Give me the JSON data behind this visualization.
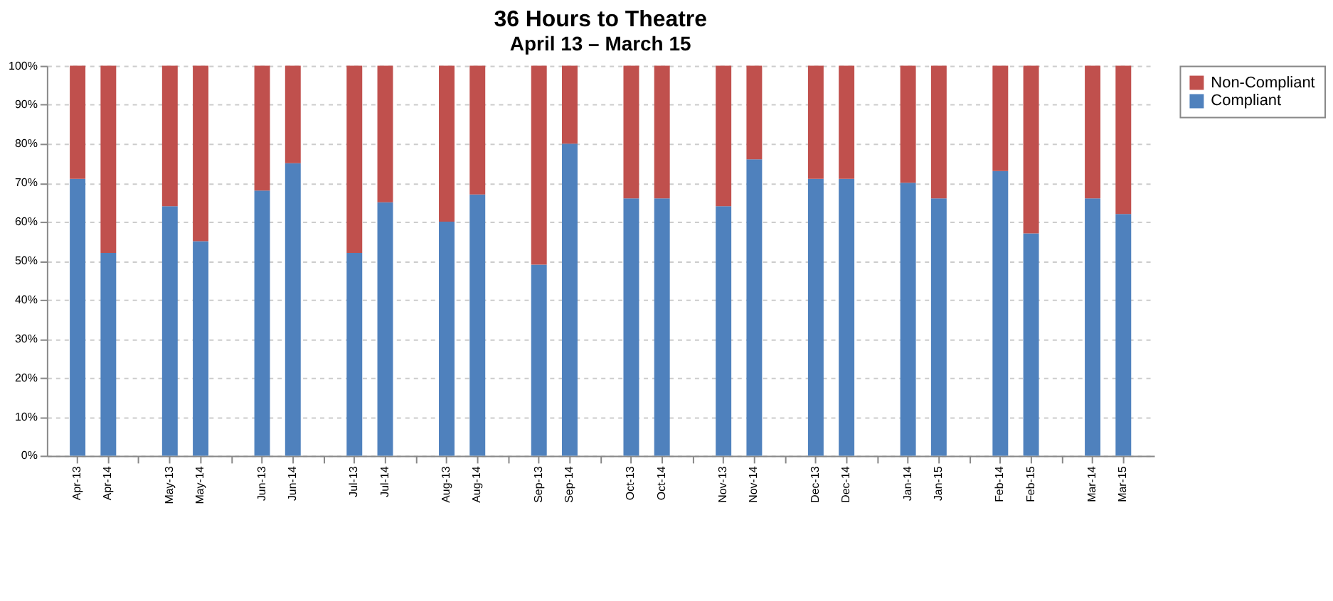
{
  "chart_data": {
    "type": "bar",
    "title": "36 Hours to Theatre",
    "subtitle": "April 13 – March 15",
    "stacked": true,
    "categories": [
      "Apr-13",
      "Apr-14",
      null,
      "May-13",
      "May-14",
      null,
      "Jun-13",
      "Jun-14",
      null,
      "Jul-13",
      "Jul-14",
      null,
      "Aug-13",
      "Aug-14",
      null,
      "Sep-13",
      "Sep-14",
      null,
      "Oct-13",
      "Oct-14",
      null,
      "Nov-13",
      "Nov-14",
      null,
      "Dec-13",
      "Dec-14",
      null,
      "Jan-14",
      "Jan-15",
      null,
      "Feb-14",
      "Feb-15",
      null,
      "Mar-14",
      "Mar-15"
    ],
    "series": [
      {
        "name": "Compliant",
        "color": "#4f81bd",
        "values": [
          71,
          52,
          null,
          64,
          55,
          null,
          68,
          75,
          null,
          52,
          65,
          null,
          60,
          67,
          null,
          49,
          80,
          null,
          66,
          66,
          null,
          64,
          76,
          null,
          71,
          71,
          null,
          70,
          66,
          null,
          73,
          57,
          null,
          66,
          62
        ]
      },
      {
        "name": "Non-Compliant",
        "color": "#c0504d",
        "values": [
          29,
          48,
          null,
          36,
          45,
          null,
          32,
          25,
          null,
          48,
          35,
          null,
          40,
          33,
          null,
          51,
          20,
          null,
          34,
          34,
          null,
          36,
          24,
          null,
          29,
          29,
          null,
          30,
          34,
          null,
          27,
          43,
          null,
          34,
          38
        ]
      }
    ],
    "ylim": [
      0,
      100
    ],
    "yticks": [
      {
        "value": 0,
        "label": "0%"
      },
      {
        "value": 10,
        "label": "10%"
      },
      {
        "value": 20,
        "label": "20%"
      },
      {
        "value": 30,
        "label": "30%"
      },
      {
        "value": 40,
        "label": "40%"
      },
      {
        "value": 50,
        "label": "50%"
      },
      {
        "value": 60,
        "label": "60%"
      },
      {
        "value": 70,
        "label": "70%"
      },
      {
        "value": 80,
        "label": "80%"
      },
      {
        "value": 90,
        "label": "90%"
      },
      {
        "value": 100,
        "label": "100%"
      }
    ],
    "grid": "y",
    "legend": "right"
  }
}
